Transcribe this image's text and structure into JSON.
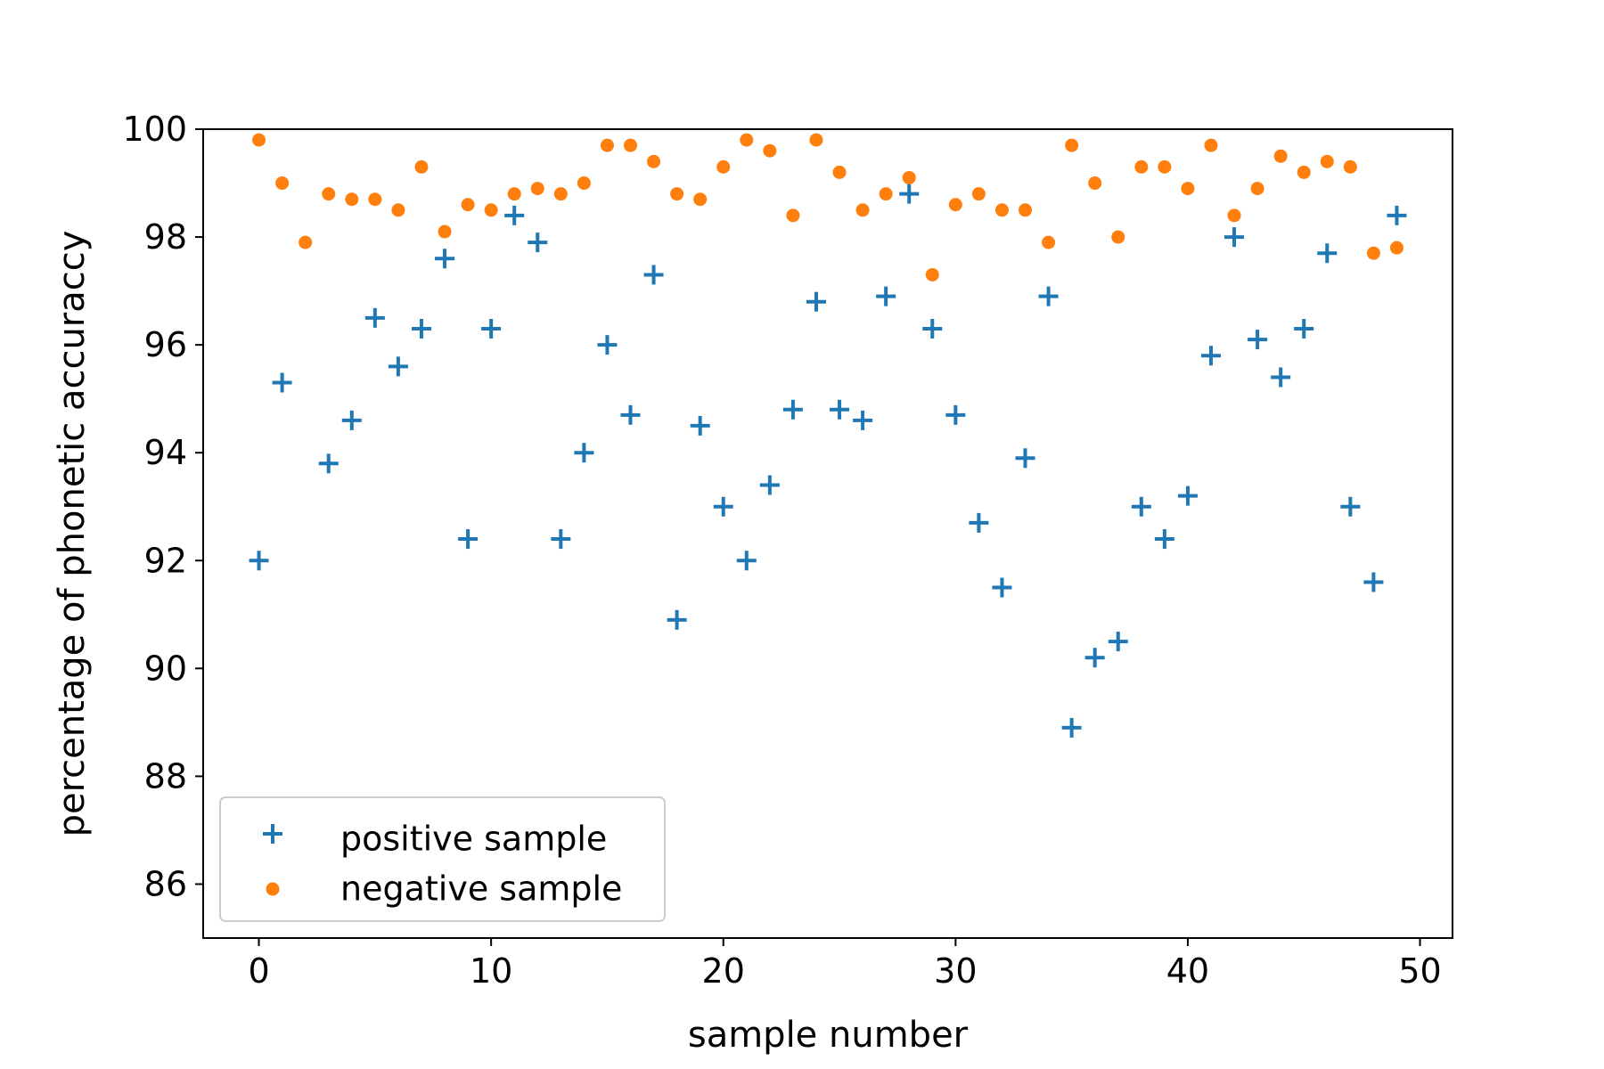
{
  "chart_data": {
    "type": "scatter",
    "title": "",
    "xlabel": "sample number",
    "ylabel": "percentage of phonetic accuraccy",
    "xlim": [
      -2.4,
      51.4
    ],
    "ylim": [
      85,
      100
    ],
    "xticks": [
      0,
      10,
      20,
      30,
      40,
      50
    ],
    "yticks": [
      86,
      88,
      90,
      92,
      94,
      96,
      98,
      100
    ],
    "grid": false,
    "legend_position": "lower-left",
    "series": [
      {
        "name": "positive sample",
        "marker": "plus",
        "color": "#1f77b4",
        "x": [
          0,
          1,
          2,
          3,
          4,
          5,
          6,
          7,
          8,
          9,
          10,
          11,
          12,
          13,
          14,
          15,
          16,
          17,
          18,
          19,
          20,
          21,
          22,
          23,
          24,
          25,
          26,
          27,
          28,
          29,
          30,
          31,
          32,
          33,
          34,
          35,
          36,
          37,
          38,
          39,
          40,
          41,
          42,
          43,
          44,
          45,
          46,
          47,
          48,
          49
        ],
        "y": [
          92.0,
          95.3,
          null,
          93.8,
          94.6,
          96.5,
          95.6,
          96.3,
          97.6,
          92.4,
          96.3,
          98.4,
          97.9,
          92.4,
          94.0,
          96.0,
          94.7,
          97.3,
          90.9,
          94.5,
          93.0,
          92.0,
          93.4,
          94.8,
          96.8,
          94.8,
          94.6,
          96.9,
          98.8,
          96.3,
          94.7,
          92.7,
          91.5,
          93.9,
          96.9,
          88.9,
          90.2,
          90.5,
          93.0,
          92.4,
          93.2,
          95.8,
          98.0,
          96.1,
          95.4,
          96.3,
          97.7,
          93.0,
          91.6,
          98.4
        ]
      },
      {
        "name": "negative sample",
        "marker": "dot",
        "color": "#ff7f0e",
        "x": [
          0,
          1,
          2,
          3,
          4,
          5,
          6,
          7,
          8,
          9,
          10,
          11,
          12,
          13,
          14,
          15,
          16,
          17,
          18,
          19,
          20,
          21,
          22,
          23,
          24,
          25,
          26,
          27,
          28,
          29,
          30,
          31,
          32,
          33,
          34,
          35,
          36,
          37,
          38,
          39,
          40,
          41,
          42,
          43,
          44,
          45,
          46,
          47,
          48,
          49
        ],
        "y": [
          99.8,
          99.0,
          97.9,
          98.8,
          98.7,
          98.7,
          98.5,
          99.3,
          98.1,
          98.6,
          98.5,
          98.8,
          98.9,
          98.8,
          99.0,
          99.7,
          99.7,
          99.4,
          98.8,
          98.7,
          99.3,
          99.8,
          99.6,
          98.4,
          99.8,
          99.2,
          98.5,
          98.8,
          99.1,
          97.3,
          98.6,
          98.8,
          98.5,
          98.5,
          97.9,
          99.7,
          99.0,
          98.0,
          99.3,
          99.3,
          98.9,
          99.7,
          98.4,
          98.9,
          99.5,
          99.2,
          99.4,
          99.3,
          97.7,
          97.8
        ]
      }
    ]
  }
}
